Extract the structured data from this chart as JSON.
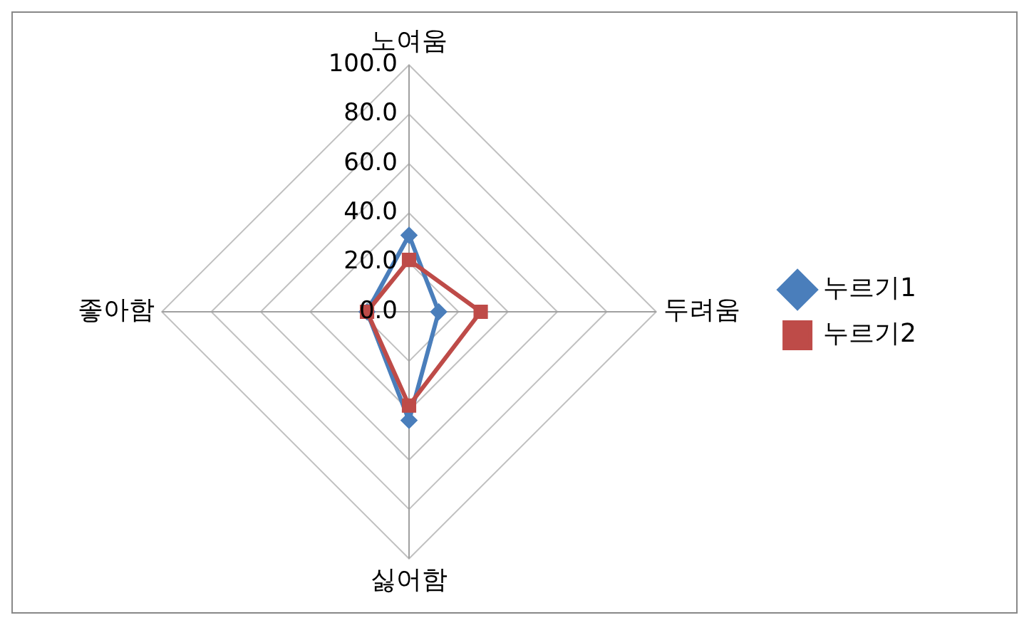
{
  "chart_data": {
    "type": "radar",
    "categories": [
      "노여움",
      "두려움",
      "싫어함",
      "좋아함"
    ],
    "series": [
      {
        "name": "누르기1",
        "color": "#4a7ebb",
        "values": [
          31,
          12,
          44,
          17
        ]
      },
      {
        "name": "누르기2",
        "color": "#be4b48",
        "values": [
          21,
          29,
          38,
          17
        ]
      }
    ],
    "ylim": [
      0,
      100
    ],
    "yticks": [
      {
        "value": 0,
        "label": "0.0"
      },
      {
        "value": 20,
        "label": "20.0"
      },
      {
        "value": 40,
        "label": "40.0"
      },
      {
        "value": 60,
        "label": "60.0"
      },
      {
        "value": 80,
        "label": "80.0"
      },
      {
        "value": 100,
        "label": "100.0"
      }
    ],
    "grid": true,
    "legend": "right",
    "marker": "diamond"
  }
}
